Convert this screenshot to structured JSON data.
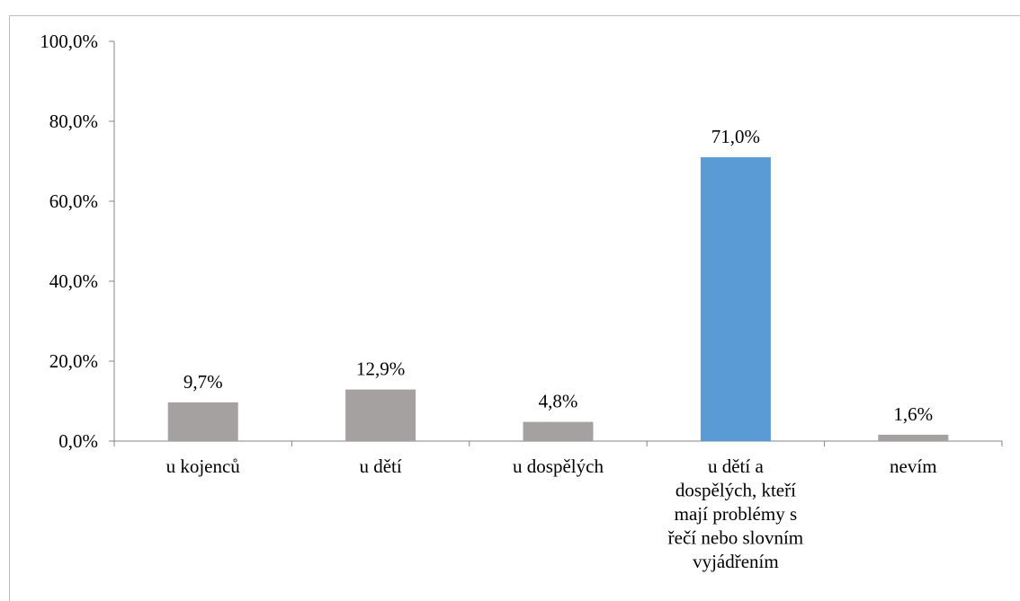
{
  "chart_data": {
    "type": "bar",
    "categories": [
      "u kojenců",
      "u dětí",
      "u dospělých",
      "u dětí a dospělých, kteří mají problémy s řečí nebo slovním vyjádřením",
      "nevím"
    ],
    "category_lines": [
      [
        "u kojenců"
      ],
      [
        "u dětí"
      ],
      [
        "u dospělých"
      ],
      [
        "u dětí a",
        "dospělých, kteří",
        "mají problémy s",
        "řečí nebo slovním",
        "vyjádřením"
      ],
      [
        "nevím"
      ]
    ],
    "values": [
      9.7,
      12.9,
      4.8,
      71.0,
      1.6
    ],
    "value_labels": [
      "9,7%",
      "12,9%",
      "4,8%",
      "71,0%",
      "1,6%"
    ],
    "bar_colors": [
      "#a6a1a1",
      "#a6a1a1",
      "#a6a1a1",
      "#5b9bd5",
      "#a6a1a1"
    ],
    "ylim": [
      0,
      100
    ],
    "yticks": [
      0,
      20,
      40,
      60,
      80,
      100
    ],
    "ytick_labels": [
      "0,0%",
      "20,0%",
      "40,0%",
      "60,0%",
      "80,0%",
      "100,0%"
    ],
    "grid": false,
    "legend": "none",
    "axis_color": "#868686"
  }
}
